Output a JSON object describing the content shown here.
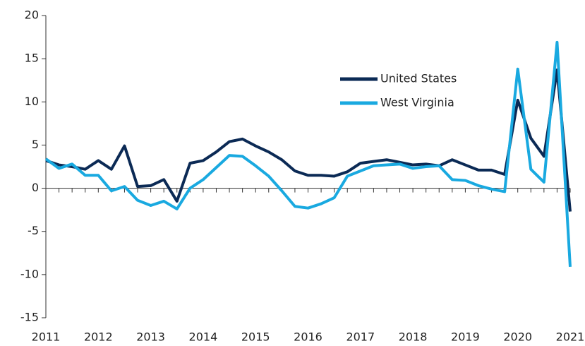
{
  "chart_data": {
    "type": "line",
    "x": [
      2011,
      2011.25,
      2011.5,
      2011.75,
      2012,
      2012.25,
      2012.5,
      2012.75,
      2013,
      2013.25,
      2013.5,
      2013.75,
      2014,
      2014.25,
      2014.5,
      2014.75,
      2015,
      2015.25,
      2015.5,
      2015.75,
      2016,
      2016.25,
      2016.5,
      2016.75,
      2017,
      2017.25,
      2017.5,
      2017.75,
      2018,
      2018.25,
      2018.5,
      2018.75,
      2019,
      2019.25,
      2019.5,
      2019.75,
      2020,
      2020.25,
      2020.5,
      2020.75,
      2021
    ],
    "series": [
      {
        "name": "United States",
        "color": "#0b2a55",
        "values": [
          3.2,
          2.7,
          2.5,
          2.2,
          3.2,
          2.2,
          4.9,
          0.2,
          0.3,
          1.0,
          -1.5,
          2.9,
          3.2,
          4.2,
          5.4,
          5.7,
          4.9,
          4.2,
          3.3,
          2.0,
          1.5,
          1.5,
          1.4,
          1.9,
          2.9,
          3.1,
          3.3,
          3.0,
          2.7,
          2.8,
          2.6,
          3.3,
          2.7,
          2.1,
          2.1,
          1.6,
          10.2,
          5.8,
          3.7,
          13.7,
          -2.7
        ]
      },
      {
        "name": "West Virginia",
        "color": "#19a9e0",
        "values": [
          3.4,
          2.3,
          2.8,
          1.5,
          1.5,
          -0.3,
          0.2,
          -1.4,
          -2.0,
          -1.5,
          -2.4,
          0.0,
          1.0,
          2.4,
          3.8,
          3.7,
          2.6,
          1.4,
          -0.3,
          -2.1,
          -2.3,
          -1.8,
          -1.1,
          1.4,
          2.0,
          2.6,
          2.7,
          2.8,
          2.3,
          2.5,
          2.6,
          1.0,
          0.9,
          0.3,
          -0.1,
          -0.4,
          13.8,
          2.2,
          0.7,
          16.9,
          -9.1
        ]
      }
    ],
    "xlim": [
      2011,
      2021
    ],
    "xticks": [
      2011,
      2012,
      2013,
      2014,
      2015,
      2016,
      2017,
      2018,
      2019,
      2020,
      2021
    ],
    "ylim": [
      -15,
      20
    ],
    "yticks": [
      -15,
      -10,
      -5,
      0,
      5,
      10,
      15,
      20
    ],
    "legend": "upper-center"
  }
}
